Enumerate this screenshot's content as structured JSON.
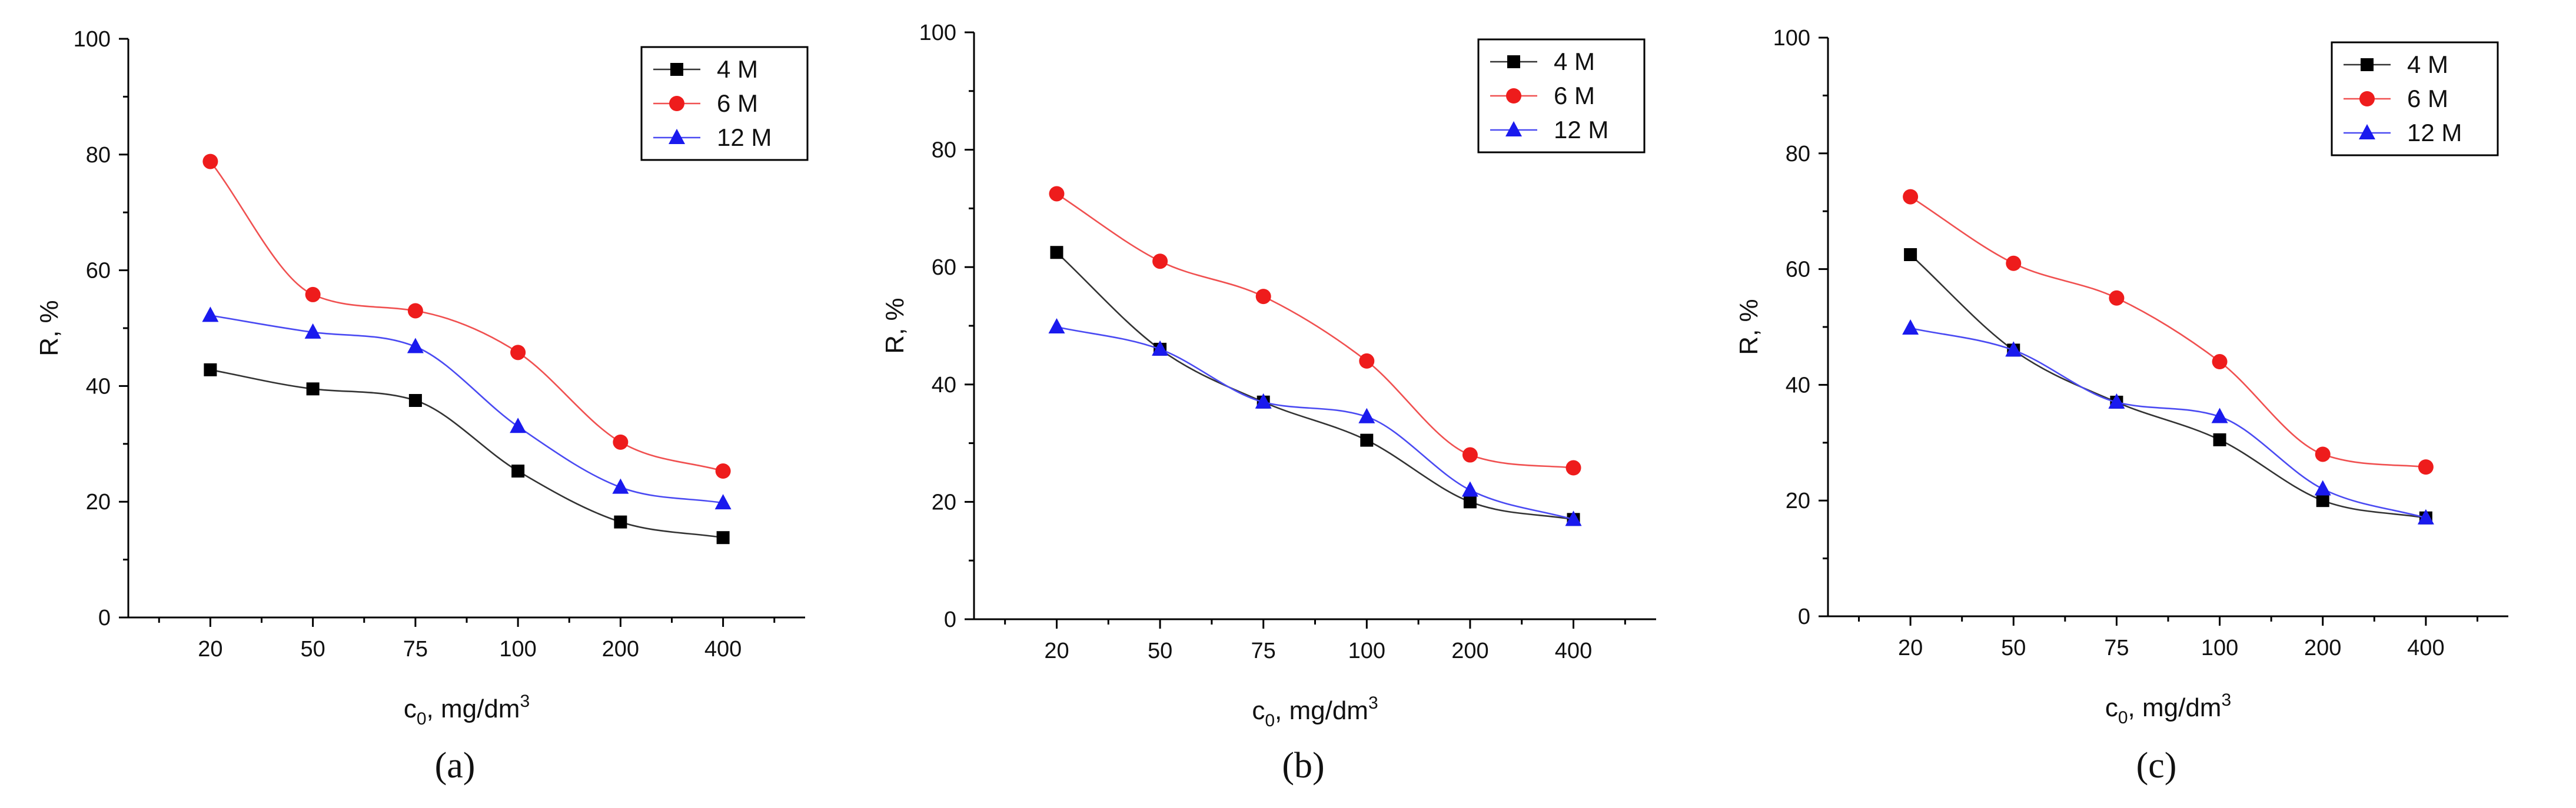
{
  "colors": {
    "axis": "#000000",
    "series_4M": "#000000",
    "series_6M": "#ee1c1c",
    "series_12M": "#1a1aee",
    "line_4M": "#333333",
    "line_6M": "#f05050",
    "line_12M": "#4a4af2"
  },
  "chart_data": [
    {
      "panel_label": "(a)",
      "type": "line",
      "categories": [
        "20",
        "50",
        "75",
        "100",
        "200",
        "400"
      ],
      "xlabel": {
        "base": "c",
        "sub": "0",
        "mid": ", mg/dm",
        "sup": "3"
      },
      "ylabel": "R, %",
      "ylim": [
        0,
        100
      ],
      "yticks": [
        "0",
        "20",
        "40",
        "60",
        "80",
        "100"
      ],
      "legend_position": "top-right",
      "series": [
        {
          "name": "4 M",
          "marker": "square",
          "values": [
            42.8,
            39.5,
            37.5,
            25.3,
            16.5,
            13.8
          ]
        },
        {
          "name": "6 M",
          "marker": "circle",
          "values": [
            78.8,
            55.8,
            53.0,
            45.8,
            30.3,
            25.3
          ]
        },
        {
          "name": "12 M",
          "marker": "triangle",
          "values": [
            52.2,
            49.3,
            46.8,
            33.0,
            22.5,
            19.8
          ]
        }
      ]
    },
    {
      "panel_label": "(b)",
      "type": "line",
      "categories": [
        "20",
        "50",
        "75",
        "100",
        "200",
        "400"
      ],
      "xlabel": {
        "base": "c",
        "sub": "0",
        "mid": ", mg/dm",
        "sup": "3"
      },
      "ylabel": "R, %",
      "ylim": [
        0,
        100
      ],
      "yticks": [
        "0",
        "20",
        "40",
        "60",
        "80",
        "100"
      ],
      "legend_position": "top-right",
      "series": [
        {
          "name": "4 M",
          "marker": "square",
          "values": [
            62.5,
            46.0,
            37.0,
            30.5,
            20.0,
            17.0
          ]
        },
        {
          "name": "6 M",
          "marker": "circle",
          "values": [
            72.5,
            61.0,
            55.0,
            44.0,
            28.0,
            25.8
          ]
        },
        {
          "name": "12 M",
          "marker": "triangle",
          "values": [
            49.8,
            46.0,
            37.0,
            34.5,
            22.0,
            17.0
          ]
        }
      ]
    },
    {
      "panel_label": "(c)",
      "type": "line",
      "categories": [
        "20",
        "50",
        "75",
        "100",
        "200",
        "400"
      ],
      "xlabel": {
        "base": "c",
        "sub": "0",
        "mid": ", mg/dm",
        "sup": "3"
      },
      "ylabel": "R, %",
      "ylim": [
        0,
        100
      ],
      "yticks": [
        "0",
        "20",
        "40",
        "60",
        "80",
        "100"
      ],
      "legend_position": "top-right",
      "series": [
        {
          "name": "4 M",
          "marker": "square",
          "values": [
            62.5,
            46.0,
            37.0,
            30.5,
            20.0,
            17.0
          ]
        },
        {
          "name": "6 M",
          "marker": "circle",
          "values": [
            72.5,
            61.0,
            55.0,
            44.0,
            28.0,
            25.8
          ]
        },
        {
          "name": "12 M",
          "marker": "triangle",
          "values": [
            49.8,
            46.0,
            37.0,
            34.5,
            22.0,
            17.0
          ]
        }
      ]
    }
  ]
}
